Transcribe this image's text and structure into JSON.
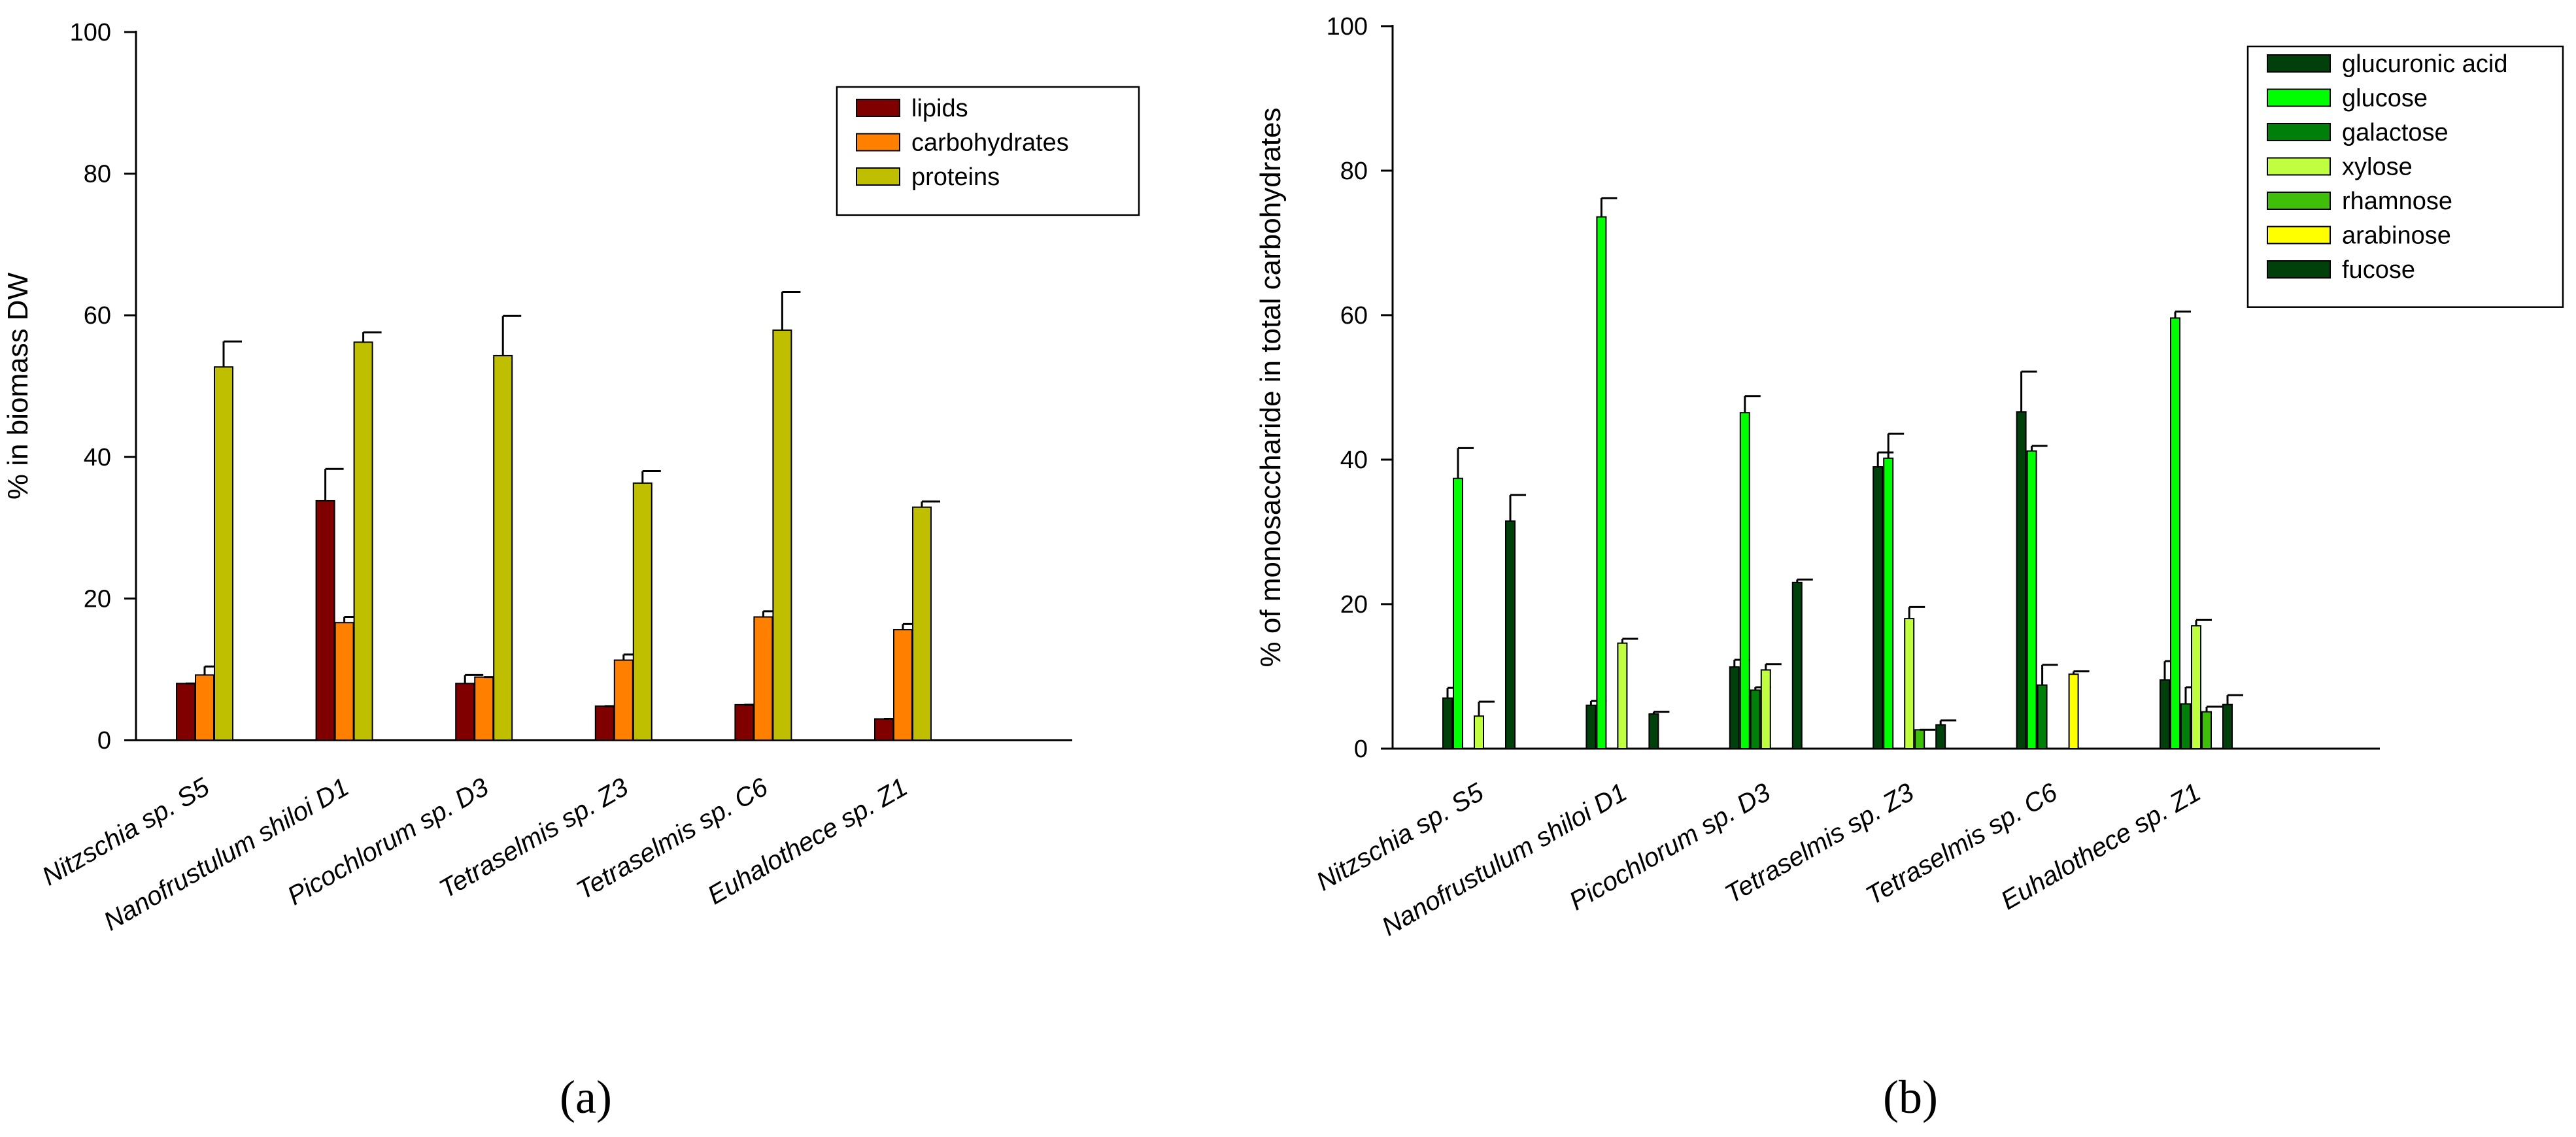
{
  "chart_data": [
    {
      "panel": "a",
      "panel_label": "(a)",
      "type": "bar",
      "ylabel": "% in biomass DW",
      "ylim": [
        0,
        100
      ],
      "yticks": [
        0,
        20,
        40,
        60,
        80,
        100
      ],
      "categories": [
        "Nitzschia sp. S5",
        "Nanofrustulum shiloi D1",
        "Picochlorum sp. D3",
        "Tetraselmis sp. Z3",
        "Tetraselmis sp. C6",
        "Euhalothece sp. Z1"
      ],
      "legend_position": "top-right",
      "series": [
        {
          "name": "lipids",
          "color": "#800000",
          "values": [
            8,
            33.8,
            8,
            4.8,
            5,
            3
          ],
          "errors": [
            0,
            4.5,
            1.2,
            0,
            0,
            0
          ]
        },
        {
          "name": "carbohydrates",
          "color": "#FF7F00",
          "values": [
            9.2,
            16.6,
            8.9,
            11.3,
            17.4,
            15.6
          ],
          "errors": [
            1.2,
            0.8,
            0,
            0.8,
            0.8,
            0.8
          ]
        },
        {
          "name": "proteins",
          "color": "#BFBF00",
          "values": [
            52.7,
            56.2,
            54.3,
            36.3,
            57.9,
            32.9
          ],
          "errors": [
            3.6,
            1.4,
            5.6,
            1.7,
            5.4,
            0.8
          ]
        }
      ]
    },
    {
      "panel": "b",
      "panel_label": "(b)",
      "type": "bar",
      "ylabel": "% of monosaccharide in total carbohydrates",
      "ylim": [
        0,
        100
      ],
      "yticks": [
        0,
        20,
        40,
        60,
        80,
        100
      ],
      "categories": [
        "Nitzschia sp. S5",
        "Nanofrustulum shiloi D1",
        "Picochlorum sp. D3",
        "Tetraselmis sp. Z3",
        "Tetraselmis sp. C6",
        "Euhalothece sp. Z1"
      ],
      "legend_position": "top-right",
      "series": [
        {
          "name": "glucuronic acid",
          "color": "#00400A",
          "values": [
            7,
            6,
            11.3,
            39,
            46.6,
            9.5
          ],
          "errors": [
            1.4,
            0.6,
            1,
            2,
            5.6,
            2.6
          ]
        },
        {
          "name": "glucose",
          "color": "#00FF00",
          "values": [
            37.4,
            73.6,
            46.5,
            40.2,
            41.2,
            59.6
          ],
          "errors": [
            4.2,
            2.6,
            2.3,
            3.4,
            0.7,
            0.9
          ]
        },
        {
          "name": "galactose",
          "color": "#007F0A",
          "values": [
            0,
            0,
            8.1,
            0,
            8.8,
            6.2
          ],
          "errors": [
            0,
            0,
            0.4,
            0,
            2.8,
            2.3
          ]
        },
        {
          "name": "xylose",
          "color": "#BFFF3F",
          "values": [
            4.5,
            14.6,
            10.9,
            18,
            0,
            17
          ],
          "errors": [
            2,
            0.6,
            0.8,
            1.6,
            0,
            0.8
          ]
        },
        {
          "name": "rhamnose",
          "color": "#3FBF0A",
          "values": [
            0,
            0,
            0,
            2.6,
            0,
            5.1
          ],
          "errors": [
            0,
            0,
            0,
            0,
            0,
            0.7
          ]
        },
        {
          "name": "arabinose",
          "color": "#FFFF00",
          "values": [
            0,
            0,
            0,
            0,
            10.3,
            0
          ],
          "errors": [
            0,
            0,
            0,
            0,
            0.4,
            0
          ]
        },
        {
          "name": "fucose",
          "color": "#00400A",
          "values": [
            31.5,
            4.8,
            23,
            3.3,
            0,
            6.1
          ],
          "errors": [
            3.6,
            0.3,
            0.4,
            0.6,
            0,
            1.3
          ]
        }
      ]
    }
  ]
}
